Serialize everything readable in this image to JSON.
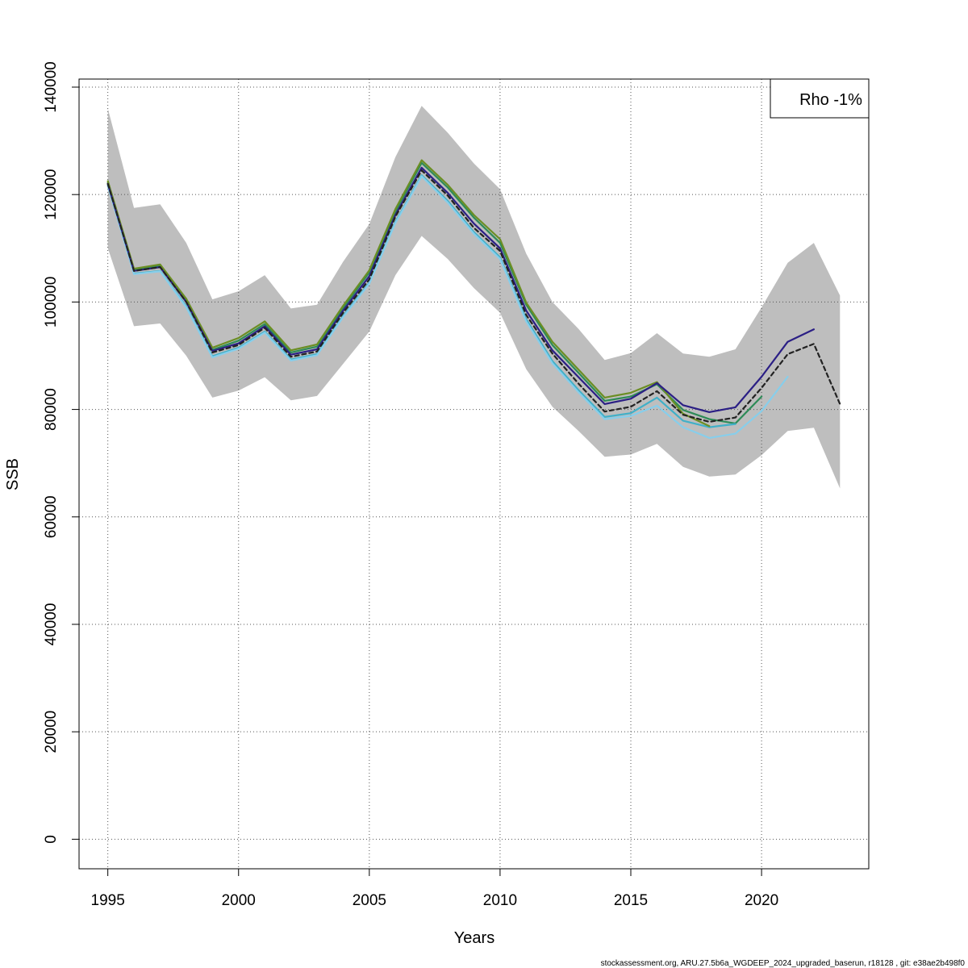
{
  "chart_data": {
    "type": "line",
    "title": "",
    "xlabel": "Years",
    "ylabel": "SSB",
    "xlim": [
      1993.9,
      2024.1
    ],
    "ylim": [
      -5500,
      141500
    ],
    "x_ticks": [
      1995,
      2000,
      2005,
      2010,
      2015,
      2020
    ],
    "y_ticks": [
      0,
      20000,
      40000,
      60000,
      80000,
      100000,
      120000,
      140000
    ],
    "grid": true,
    "legend": {
      "placement": "top-right",
      "text": "Rho -1%"
    },
    "confidence_band": {
      "color": "#bebebe",
      "x": [
        1995,
        1996,
        1997,
        1998,
        1999,
        2000,
        2001,
        2002,
        2003,
        2004,
        2005,
        2006,
        2007,
        2008,
        2009,
        2010,
        2011,
        2012,
        2013,
        2014,
        2015,
        2016,
        2017,
        2018,
        2019,
        2020,
        2021,
        2022,
        2023
      ],
      "upper": [
        136000,
        117500,
        118200,
        111000,
        100500,
        102000,
        105000,
        98800,
        99500,
        107500,
        114500,
        127000,
        136500,
        131500,
        125800,
        121000,
        109000,
        100000,
        95000,
        89200,
        90500,
        94200,
        90400,
        89800,
        91200,
        99000,
        107300,
        111000,
        101200
      ],
      "lower": [
        110000,
        95500,
        96000,
        90000,
        82200,
        83500,
        86000,
        81700,
        82500,
        88500,
        94500,
        105000,
        112300,
        108000,
        102600,
        98000,
        87500,
        80500,
        76000,
        71200,
        71600,
        73600,
        69300,
        67500,
        67900,
        71500,
        76000,
        76600,
        65300
      ]
    },
    "series": [
      {
        "color": "#2e8b57",
        "dashed": false,
        "x": [
          1995,
          1996,
          1997,
          1998,
          1999,
          2000,
          2001,
          2002,
          2003,
          2004,
          2005,
          2006,
          2007,
          2008,
          2009,
          2010,
          2011,
          2012,
          2013,
          2014,
          2015,
          2016,
          2017,
          2018,
          2019,
          2020
        ],
        "values": [
          122200,
          106000,
          106700,
          100300,
          91100,
          92800,
          95900,
          90600,
          91700,
          98900,
          105500,
          116800,
          125900,
          121300,
          115700,
          111000,
          99500,
          92000,
          86800,
          81600,
          82400,
          84700,
          79900,
          78200,
          77400,
          82400
        ]
      },
      {
        "color": "#40b0c8",
        "dashed": false,
        "x": [
          1995,
          1996,
          1997,
          1998,
          1999,
          2000,
          2001,
          2002,
          2003,
          2004,
          2005,
          2006,
          2007,
          2008,
          2009,
          2010,
          2011,
          2012,
          2013,
          2014,
          2015,
          2016,
          2017,
          2018,
          2019
        ],
        "values": [
          121700,
          105300,
          105800,
          99200,
          89900,
          91500,
          94500,
          89300,
          90300,
          97400,
          103600,
          114900,
          123600,
          118800,
          113000,
          108300,
          96800,
          89000,
          83600,
          78600,
          79300,
          82200,
          77900,
          76700,
          77300
        ]
      },
      {
        "color": "#87ceeb",
        "dashed": false,
        "x": [
          1995,
          1996,
          1997,
          1998,
          1999,
          2000,
          2001,
          2002,
          2003,
          2004,
          2005,
          2006,
          2007,
          2008,
          2009,
          2010,
          2011,
          2012,
          2013,
          2014,
          2015,
          2016,
          2017,
          2018,
          2019,
          2020,
          2021
        ],
        "values": [
          121600,
          105200,
          105700,
          99000,
          89700,
          91300,
          94300,
          89100,
          90100,
          97200,
          103400,
          114700,
          123400,
          118500,
          112700,
          108000,
          96400,
          88600,
          83200,
          78200,
          78800,
          80700,
          76700,
          74700,
          75500,
          79700,
          86100
        ]
      },
      {
        "color": "#6b8e23",
        "dashed": false,
        "x": [
          1995,
          1996,
          1997,
          1998,
          1999,
          2000,
          2001,
          2002,
          2003,
          2004,
          2005,
          2006,
          2007,
          2008,
          2009,
          2010,
          2011,
          2012,
          2013,
          2014,
          2015,
          2016,
          2017,
          2018
        ],
        "values": [
          122500,
          106200,
          107000,
          100600,
          91500,
          93300,
          96400,
          91000,
          92100,
          99300,
          105900,
          117300,
          126400,
          121800,
          116200,
          111700,
          99900,
          92600,
          87400,
          82200,
          83100,
          85100,
          79200,
          76900
        ]
      },
      {
        "color": "#2b1f85",
        "dashed": false,
        "x": [
          1995,
          1996,
          1997,
          1998,
          1999,
          2000,
          2001,
          2002,
          2003,
          2004,
          2005,
          2006,
          2007,
          2008,
          2009,
          2010,
          2011,
          2012,
          2013,
          2014,
          2015,
          2016,
          2017,
          2018,
          2019,
          2020,
          2021,
          2022
        ],
        "values": [
          122000,
          105800,
          106500,
          100000,
          90900,
          92300,
          95500,
          90200,
          91200,
          98400,
          104800,
          116200,
          125000,
          120300,
          114600,
          110000,
          98400,
          91000,
          86000,
          81000,
          82000,
          84900,
          80800,
          79500,
          80400,
          86100,
          92600,
          94900
        ]
      },
      {
        "color": "#222222",
        "dashed": true,
        "x": [
          1995,
          1996,
          1997,
          1998,
          1999,
          2000,
          2001,
          2002,
          2003,
          2004,
          2005,
          2006,
          2007,
          2008,
          2009,
          2010,
          2011,
          2012,
          2013,
          2014,
          2015,
          2016,
          2017,
          2018,
          2019,
          2020,
          2021,
          2022,
          2023
        ],
        "values": [
          122000,
          105800,
          106500,
          100000,
          90600,
          92000,
          95200,
          89800,
          90800,
          98000,
          104200,
          115900,
          124500,
          119800,
          113800,
          109500,
          97600,
          90400,
          84800,
          79600,
          80500,
          83400,
          79000,
          77700,
          78500,
          84000,
          90300,
          92200,
          81000
        ]
      }
    ]
  },
  "footer": {
    "credit": "stockassessment.org, ARU.27.5b6a_WGDEEP_2024_upgraded_baserun, r18128 , git: e38ae2b498f0"
  }
}
